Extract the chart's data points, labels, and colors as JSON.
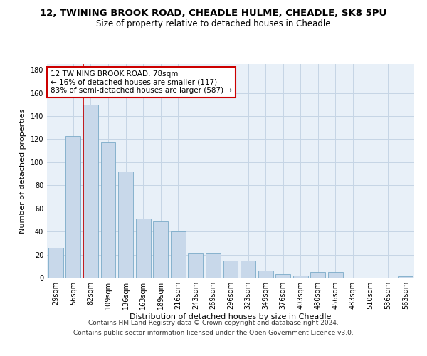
{
  "title_line1": "12, TWINING BROOK ROAD, CHEADLE HULME, CHEADLE, SK8 5PU",
  "title_line2": "Size of property relative to detached houses in Cheadle",
  "xlabel": "Distribution of detached houses by size in Cheadle",
  "ylabel": "Number of detached properties",
  "categories": [
    "29sqm",
    "56sqm",
    "82sqm",
    "109sqm",
    "136sqm",
    "163sqm",
    "189sqm",
    "216sqm",
    "243sqm",
    "269sqm",
    "296sqm",
    "323sqm",
    "349sqm",
    "376sqm",
    "403sqm",
    "430sqm",
    "456sqm",
    "483sqm",
    "510sqm",
    "536sqm",
    "563sqm"
  ],
  "values": [
    26,
    123,
    150,
    117,
    92,
    51,
    49,
    40,
    21,
    21,
    15,
    15,
    6,
    3,
    2,
    5,
    5,
    0,
    0,
    0,
    1
  ],
  "bar_color": "#c8d8ea",
  "bar_edge_color": "#7aaac8",
  "highlight_bar_index": 2,
  "annotation_text": "12 TWINING BROOK ROAD: 78sqm\n← 16% of detached houses are smaller (117)\n83% of semi-detached houses are larger (587) →",
  "annotation_box_color": "#ffffff",
  "annotation_box_edge_color": "#cc0000",
  "red_line_color": "#cc0000",
  "footnote_line1": "Contains HM Land Registry data © Crown copyright and database right 2024.",
  "footnote_line2": "Contains public sector information licensed under the Open Government Licence v3.0.",
  "ylim": [
    0,
    185
  ],
  "yticks": [
    0,
    20,
    40,
    60,
    80,
    100,
    120,
    140,
    160,
    180
  ],
  "bg_color": "#ffffff",
  "plot_bg_color": "#e8f0f8",
  "grid_color": "#c5d5e5",
  "title1_fontsize": 9.5,
  "title2_fontsize": 8.5,
  "xlabel_fontsize": 8,
  "ylabel_fontsize": 8,
  "tick_fontsize": 7,
  "annotation_fontsize": 7.5,
  "footnote_fontsize": 6.5
}
